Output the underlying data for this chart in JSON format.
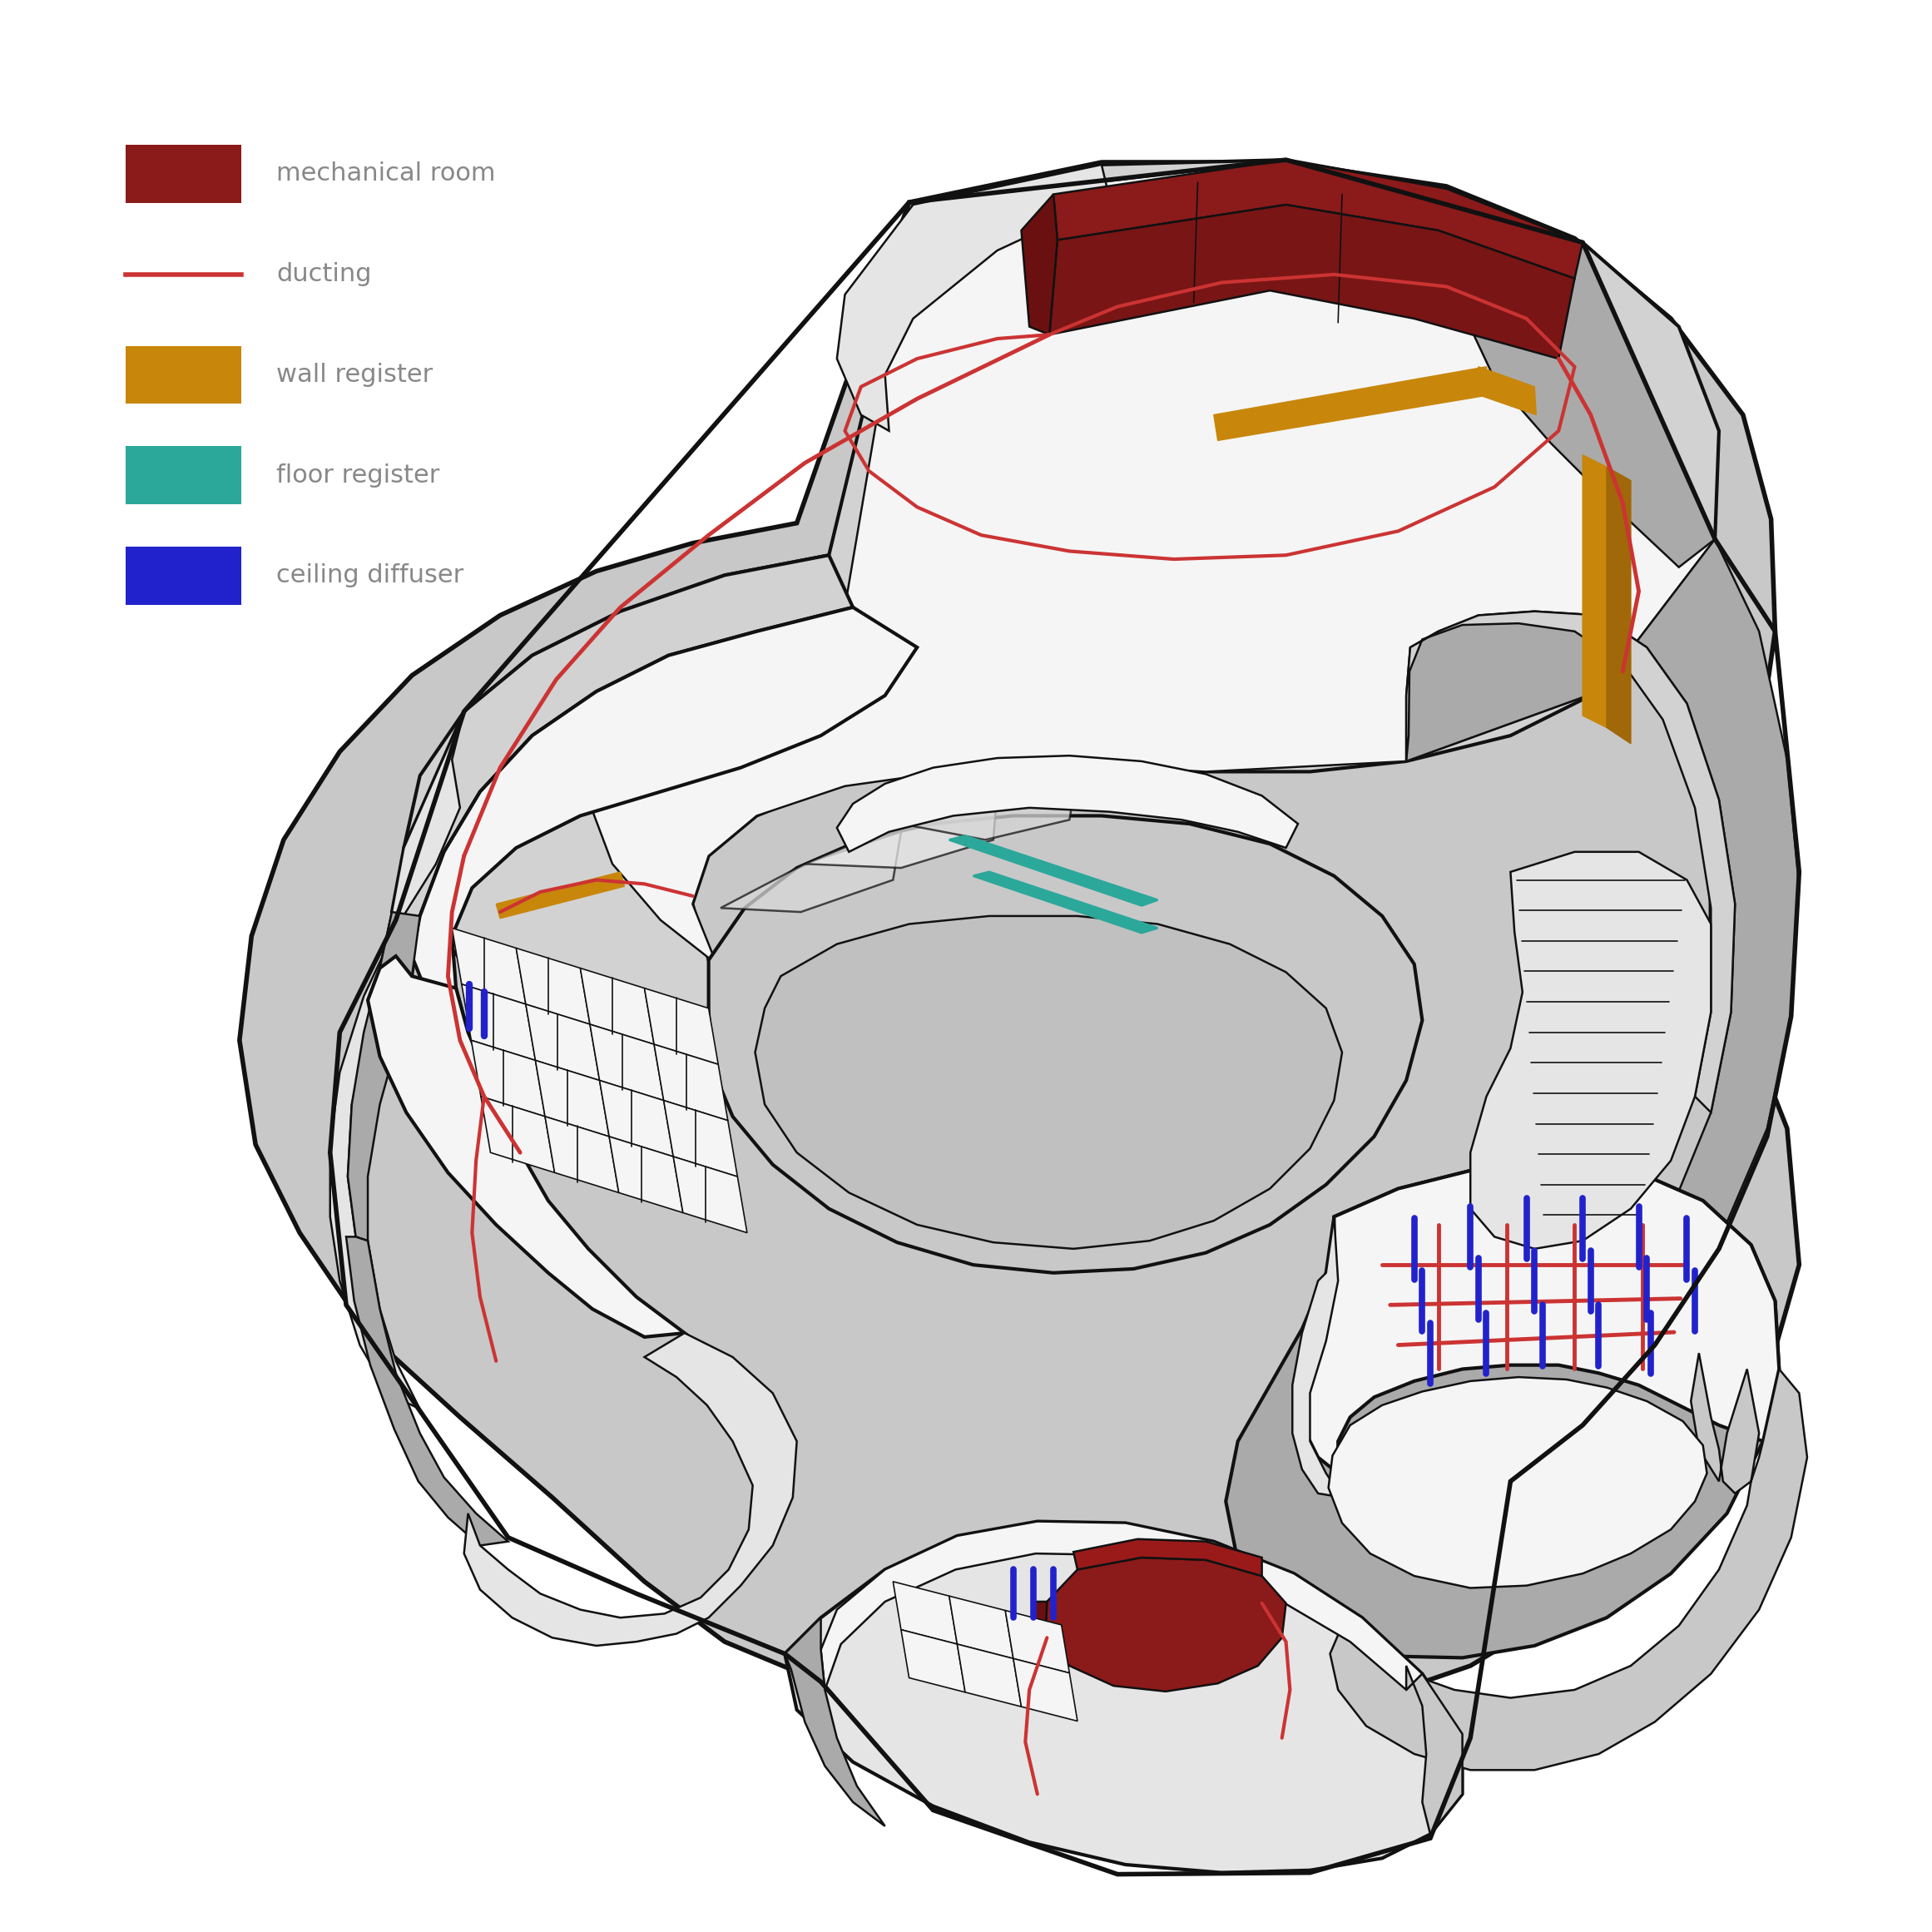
{
  "background_color": "#ffffff",
  "legend_items": [
    {
      "label": "mechanical room",
      "color": "#8B1A1A",
      "type": "patch"
    },
    {
      "label": "ducting",
      "color": "#CC3333",
      "type": "line"
    },
    {
      "label": "wall register",
      "color": "#C8860A",
      "type": "patch"
    },
    {
      "label": "floor register",
      "color": "#2BA89A",
      "type": "patch"
    },
    {
      "label": "ceiling diffuser",
      "color": "#2222CC",
      "type": "patch"
    }
  ],
  "legend_fontsize": 22,
  "colors": {
    "dark_red": "#8B1A1A",
    "dark_red2": "#6B1010",
    "duct_red": "#CC3333",
    "wall_reg": "#C8860A",
    "floor_reg": "#2BA89A",
    "ceil_diff": "#2222CC",
    "gray_light": "#E5E5E5",
    "gray_mid": "#C8C8C8",
    "gray_dark": "#AAAAAA",
    "gray_darker": "#909090",
    "gray_roof": "#D2D2D2",
    "white_floor": "#F5F5F5",
    "black": "#111111",
    "very_light": "#EEEEEE",
    "shadow": "#BBBBBB"
  }
}
